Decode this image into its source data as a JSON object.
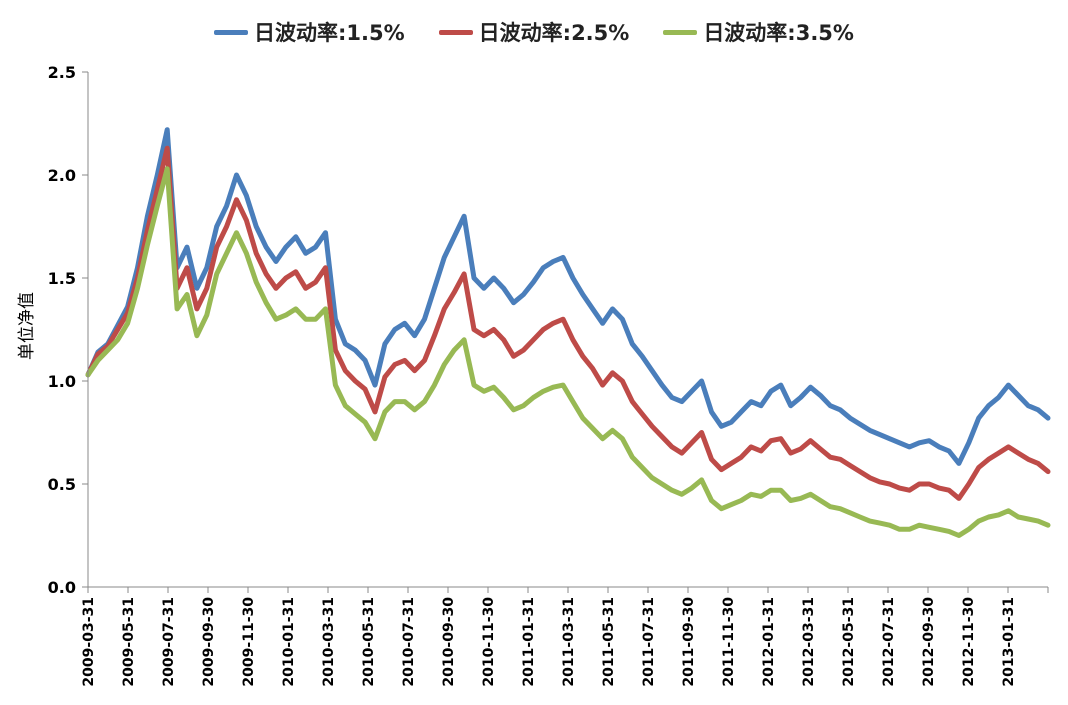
{
  "chart_data": {
    "type": "line",
    "title": "",
    "xlabel": "",
    "ylabel": "单位净值",
    "ylim": [
      0.0,
      2.5
    ],
    "yticks": [
      "0.0",
      "0.5",
      "1.0",
      "1.5",
      "2.0",
      "2.5"
    ],
    "ytick_values": [
      0.0,
      0.5,
      1.0,
      1.5,
      2.0,
      2.5
    ],
    "xticks": [
      "2009-03-31",
      "2009-05-31",
      "2009-07-31",
      "2009-09-30",
      "2009-11-30",
      "2010-01-31",
      "2010-03-31",
      "2010-05-31",
      "2010-07-31",
      "2010-09-30",
      "2010-11-30",
      "2011-01-31",
      "2011-03-31",
      "2011-05-31",
      "2011-07-31",
      "2011-09-30",
      "2011-11-30",
      "2012-01-31",
      "2012-03-31",
      "2012-05-31",
      "2012-07-31",
      "2012-09-30",
      "2012-11-30",
      "2013-01-31"
    ],
    "grid": false,
    "legend_position": "top",
    "x": [
      "2009-03-31",
      "2009-04-15",
      "2009-04-30",
      "2009-05-15",
      "2009-05-31",
      "2009-06-15",
      "2009-06-30",
      "2009-07-15",
      "2009-07-31",
      "2009-08-15",
      "2009-08-31",
      "2009-09-15",
      "2009-09-30",
      "2009-10-15",
      "2009-10-31",
      "2009-11-15",
      "2009-11-30",
      "2009-12-15",
      "2009-12-31",
      "2010-01-15",
      "2010-01-31",
      "2010-02-15",
      "2010-02-28",
      "2010-03-15",
      "2010-03-31",
      "2010-04-15",
      "2010-04-30",
      "2010-05-15",
      "2010-05-31",
      "2010-06-15",
      "2010-06-30",
      "2010-07-15",
      "2010-07-31",
      "2010-08-15",
      "2010-08-31",
      "2010-09-15",
      "2010-09-30",
      "2010-10-15",
      "2010-10-31",
      "2010-11-15",
      "2010-11-30",
      "2010-12-15",
      "2010-12-31",
      "2011-01-15",
      "2011-01-31",
      "2011-02-15",
      "2011-02-28",
      "2011-03-15",
      "2011-03-31",
      "2011-04-15",
      "2011-04-30",
      "2011-05-15",
      "2011-05-31",
      "2011-06-15",
      "2011-06-30",
      "2011-07-15",
      "2011-07-31",
      "2011-08-15",
      "2011-08-31",
      "2011-09-15",
      "2011-09-30",
      "2011-10-15",
      "2011-10-31",
      "2011-11-15",
      "2011-11-30",
      "2011-12-15",
      "2011-12-31",
      "2012-01-15",
      "2012-01-31",
      "2012-02-15",
      "2012-02-29",
      "2012-03-15",
      "2012-03-31",
      "2012-04-15",
      "2012-04-30",
      "2012-05-15",
      "2012-05-31",
      "2012-06-15",
      "2012-06-30",
      "2012-07-15",
      "2012-07-31",
      "2012-08-15",
      "2012-08-31",
      "2012-09-15",
      "2012-09-30",
      "2012-10-15",
      "2012-10-31",
      "2012-11-15",
      "2012-11-30",
      "2012-12-15",
      "2012-12-31",
      "2013-01-15",
      "2013-01-31",
      "2013-02-15",
      "2013-02-28",
      "2013-03-15",
      "2013-03-31",
      "2013-04-15"
    ],
    "series": [
      {
        "name": "日波动率:1.5%",
        "color": "#4a7ebb",
        "values": [
          1.03,
          1.14,
          1.18,
          1.27,
          1.36,
          1.55,
          1.8,
          2.0,
          2.22,
          1.55,
          1.65,
          1.45,
          1.55,
          1.75,
          1.85,
          2.0,
          1.9,
          1.75,
          1.65,
          1.58,
          1.65,
          1.7,
          1.62,
          1.65,
          1.72,
          1.3,
          1.18,
          1.15,
          1.1,
          0.98,
          1.18,
          1.25,
          1.28,
          1.22,
          1.3,
          1.45,
          1.6,
          1.7,
          1.8,
          1.5,
          1.45,
          1.5,
          1.45,
          1.38,
          1.42,
          1.48,
          1.55,
          1.58,
          1.6,
          1.5,
          1.42,
          1.35,
          1.28,
          1.35,
          1.3,
          1.18,
          1.12,
          1.05,
          0.98,
          0.92,
          0.9,
          0.95,
          1.0,
          0.85,
          0.78,
          0.8,
          0.85,
          0.9,
          0.88,
          0.95,
          0.98,
          0.88,
          0.92,
          0.97,
          0.93,
          0.88,
          0.86,
          0.82,
          0.79,
          0.76,
          0.74,
          0.72,
          0.7,
          0.68,
          0.7,
          0.71,
          0.68,
          0.66,
          0.6,
          0.7,
          0.82,
          0.88,
          0.92,
          0.98,
          0.93,
          0.88,
          0.86,
          0.82
        ]
      },
      {
        "name": "日波动率:2.5%",
        "color": "#be4b48",
        "values": [
          1.03,
          1.13,
          1.17,
          1.25,
          1.33,
          1.5,
          1.73,
          1.93,
          2.13,
          1.45,
          1.55,
          1.35,
          1.45,
          1.65,
          1.75,
          1.88,
          1.78,
          1.62,
          1.52,
          1.45,
          1.5,
          1.53,
          1.45,
          1.48,
          1.55,
          1.15,
          1.05,
          1.0,
          0.96,
          0.85,
          1.02,
          1.08,
          1.1,
          1.05,
          1.1,
          1.22,
          1.35,
          1.43,
          1.52,
          1.25,
          1.22,
          1.25,
          1.2,
          1.12,
          1.15,
          1.2,
          1.25,
          1.28,
          1.3,
          1.2,
          1.12,
          1.06,
          0.98,
          1.04,
          1.0,
          0.9,
          0.84,
          0.78,
          0.73,
          0.68,
          0.65,
          0.7,
          0.75,
          0.62,
          0.57,
          0.6,
          0.63,
          0.68,
          0.66,
          0.71,
          0.72,
          0.65,
          0.67,
          0.71,
          0.67,
          0.63,
          0.62,
          0.59,
          0.56,
          0.53,
          0.51,
          0.5,
          0.48,
          0.47,
          0.5,
          0.5,
          0.48,
          0.47,
          0.43,
          0.5,
          0.58,
          0.62,
          0.65,
          0.68,
          0.65,
          0.62,
          0.6,
          0.56
        ]
      },
      {
        "name": "日波动率:3.5%",
        "color": "#98b954",
        "values": [
          1.03,
          1.1,
          1.15,
          1.2,
          1.28,
          1.45,
          1.66,
          1.85,
          2.03,
          1.35,
          1.42,
          1.22,
          1.32,
          1.52,
          1.62,
          1.72,
          1.62,
          1.48,
          1.38,
          1.3,
          1.32,
          1.35,
          1.3,
          1.3,
          1.35,
          0.98,
          0.88,
          0.84,
          0.8,
          0.72,
          0.85,
          0.9,
          0.9,
          0.86,
          0.9,
          0.98,
          1.08,
          1.15,
          1.2,
          0.98,
          0.95,
          0.97,
          0.92,
          0.86,
          0.88,
          0.92,
          0.95,
          0.97,
          0.98,
          0.9,
          0.82,
          0.77,
          0.72,
          0.76,
          0.72,
          0.63,
          0.58,
          0.53,
          0.5,
          0.47,
          0.45,
          0.48,
          0.52,
          0.42,
          0.38,
          0.4,
          0.42,
          0.45,
          0.44,
          0.47,
          0.47,
          0.42,
          0.43,
          0.45,
          0.42,
          0.39,
          0.38,
          0.36,
          0.34,
          0.32,
          0.31,
          0.3,
          0.28,
          0.28,
          0.3,
          0.29,
          0.28,
          0.27,
          0.25,
          0.28,
          0.32,
          0.34,
          0.35,
          0.37,
          0.34,
          0.33,
          0.32,
          0.3
        ]
      }
    ]
  }
}
